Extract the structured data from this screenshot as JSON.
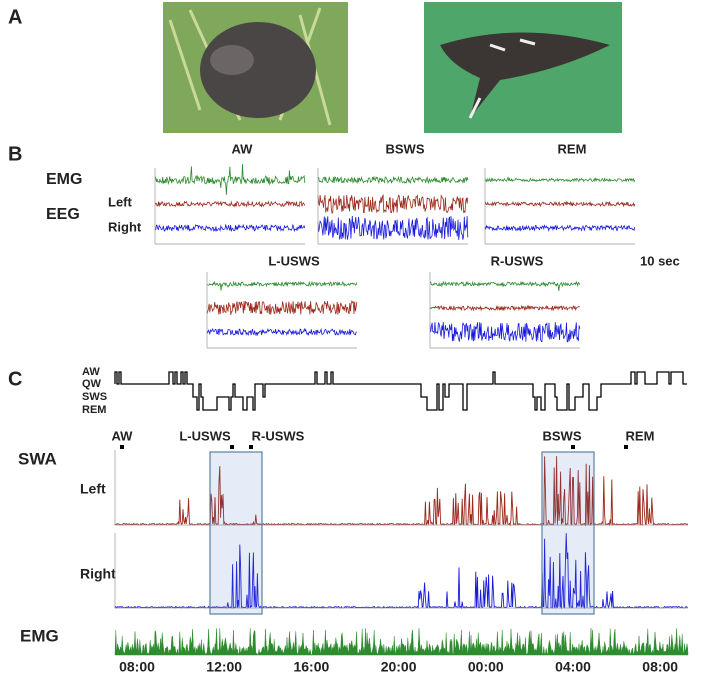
{
  "panels": {
    "a": {
      "label": "A"
    },
    "b": {
      "label": "B",
      "row_labels": {
        "emg": "EMG",
        "eeg": "EEG",
        "left": "Left",
        "right": "Right"
      },
      "states": [
        "AW",
        "BSWS",
        "REM",
        "L-USWS",
        "R-USWS"
      ],
      "scale_bar": "10 sec"
    },
    "c": {
      "label": "C",
      "hypnogram_levels": [
        "AW",
        "QW",
        "SWS",
        "REM"
      ],
      "markers": [
        "AW",
        "L-USWS",
        "R-USWS",
        "BSWS",
        "REM"
      ],
      "swa": "SWA",
      "left": "Left",
      "right": "Right",
      "emg": "EMG",
      "time_axis": [
        "08:00",
        "12:00",
        "16:00",
        "20:00",
        "00:00",
        "04:00",
        "08:00"
      ]
    }
  }
}
